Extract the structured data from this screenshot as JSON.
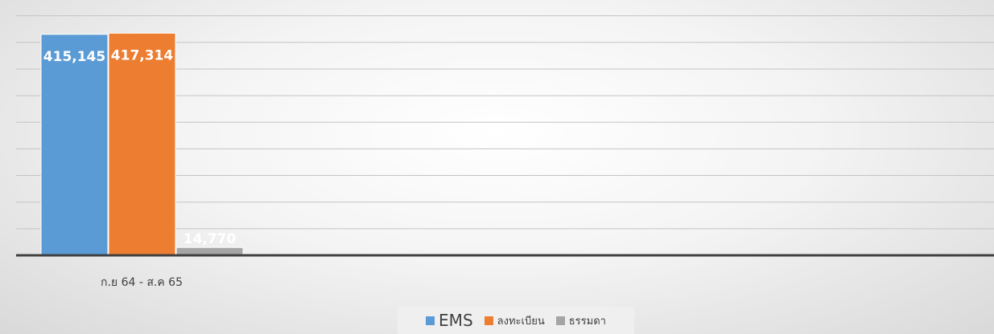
{
  "chart_data": {
    "type": "bar",
    "categories": [
      "ก.ย 64 - ส.ค 65"
    ],
    "series": [
      {
        "name": "EMS",
        "values": [
          415145
        ],
        "color": "#5B9BD5",
        "label": "415,145"
      },
      {
        "name": "ลงทะเบียน",
        "values": [
          417314
        ],
        "color": "#ED7D31",
        "label": "417,314"
      },
      {
        "name": "ธรรมดา",
        "values": [
          14770
        ],
        "color": "#A5A5A5",
        "label": "14,770"
      }
    ],
    "ylim": [
      0,
      450000
    ],
    "grid": true,
    "legend_position": "bottom"
  }
}
